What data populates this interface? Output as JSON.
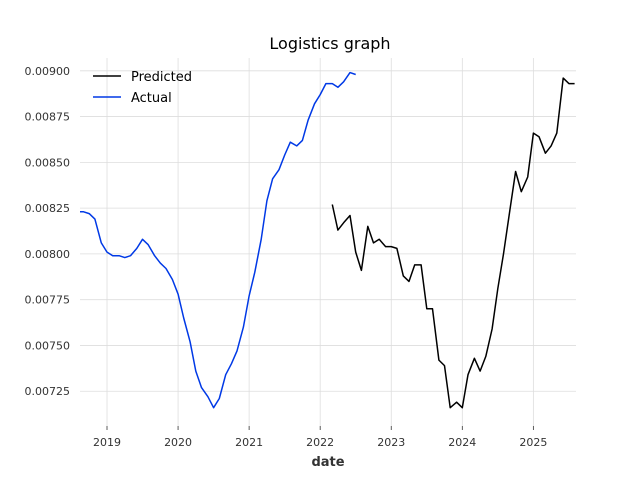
{
  "chart_data": {
    "type": "line",
    "title": "Logistics graph",
    "xlabel": "date",
    "ylabel": "",
    "xlim": [
      2018.62,
      2025.6
    ],
    "ylim": [
      0.00706,
      0.00907
    ],
    "x_ticks": [
      2019,
      2020,
      2021,
      2022,
      2023,
      2024,
      2025
    ],
    "x_tick_labels": [
      "2019",
      "2020",
      "2021",
      "2022",
      "2023",
      "2024",
      "2025"
    ],
    "y_ticks": [
      0.00725,
      0.0075,
      0.00775,
      0.008,
      0.00825,
      0.0085,
      0.00875,
      0.009
    ],
    "y_tick_labels": [
      "0.00725",
      "0.00750",
      "0.00775",
      "0.00800",
      "0.00825",
      "0.00850",
      "0.00875",
      "0.00900"
    ],
    "grid": true,
    "legend_position": "top-left",
    "series": [
      {
        "name": "Predicted",
        "color": "#000000",
        "x": [
          2022.17,
          2022.25,
          2022.33,
          2022.42,
          2022.5,
          2022.58,
          2022.67,
          2022.75,
          2022.83,
          2022.92,
          2023.0,
          2023.08,
          2023.17,
          2023.25,
          2023.33,
          2023.42,
          2023.5,
          2023.58,
          2023.67,
          2023.75,
          2023.83,
          2023.92,
          2024.0,
          2024.08,
          2024.17,
          2024.25,
          2024.33,
          2024.42,
          2024.5,
          2024.58,
          2024.67,
          2024.75,
          2024.83,
          2024.92,
          2025.0,
          2025.08,
          2025.17,
          2025.25,
          2025.33,
          2025.42,
          2025.5,
          2025.58
        ],
        "values": [
          0.00827,
          0.00813,
          0.00817,
          0.00821,
          0.00801,
          0.00791,
          0.00815,
          0.00806,
          0.00808,
          0.00804,
          0.00804,
          0.00803,
          0.00788,
          0.00785,
          0.00794,
          0.00794,
          0.0077,
          0.0077,
          0.00742,
          0.00739,
          0.00716,
          0.00719,
          0.00716,
          0.00734,
          0.00743,
          0.00736,
          0.00744,
          0.00759,
          0.00781,
          0.008,
          0.00824,
          0.00845,
          0.00834,
          0.00842,
          0.00866,
          0.00864,
          0.00855,
          0.00859,
          0.00866,
          0.00896,
          0.00893,
          0.00893
        ]
      },
      {
        "name": "Actual",
        "color": "#0039e6",
        "x": [
          2018.62,
          2018.67,
          2018.75,
          2018.83,
          2018.92,
          2019.0,
          2019.08,
          2019.17,
          2019.25,
          2019.33,
          2019.42,
          2019.5,
          2019.58,
          2019.67,
          2019.75,
          2019.83,
          2019.92,
          2020.0,
          2020.08,
          2020.17,
          2020.25,
          2020.33,
          2020.42,
          2020.5,
          2020.58,
          2020.67,
          2020.75,
          2020.83,
          2020.92,
          2021.0,
          2021.08,
          2021.17,
          2021.25,
          2021.33,
          2021.42,
          2021.5,
          2021.58,
          2021.67,
          2021.75,
          2021.83,
          2021.92,
          2022.0,
          2022.08,
          2022.17,
          2022.25,
          2022.33,
          2022.42,
          2022.5
        ],
        "values": [
          0.00823,
          0.00823,
          0.00822,
          0.00819,
          0.00806,
          0.00801,
          0.00799,
          0.00799,
          0.00798,
          0.00799,
          0.00803,
          0.00808,
          0.00805,
          0.00799,
          0.00795,
          0.00792,
          0.00786,
          0.00778,
          0.00765,
          0.00752,
          0.00736,
          0.00727,
          0.00722,
          0.00716,
          0.00721,
          0.00734,
          0.0074,
          0.00747,
          0.0076,
          0.00777,
          0.0079,
          0.00808,
          0.00829,
          0.00841,
          0.00846,
          0.00854,
          0.00861,
          0.00859,
          0.00862,
          0.00873,
          0.00882,
          0.00887,
          0.00893,
          0.00893,
          0.00891,
          0.00894,
          0.00899,
          0.00898
        ]
      }
    ]
  }
}
